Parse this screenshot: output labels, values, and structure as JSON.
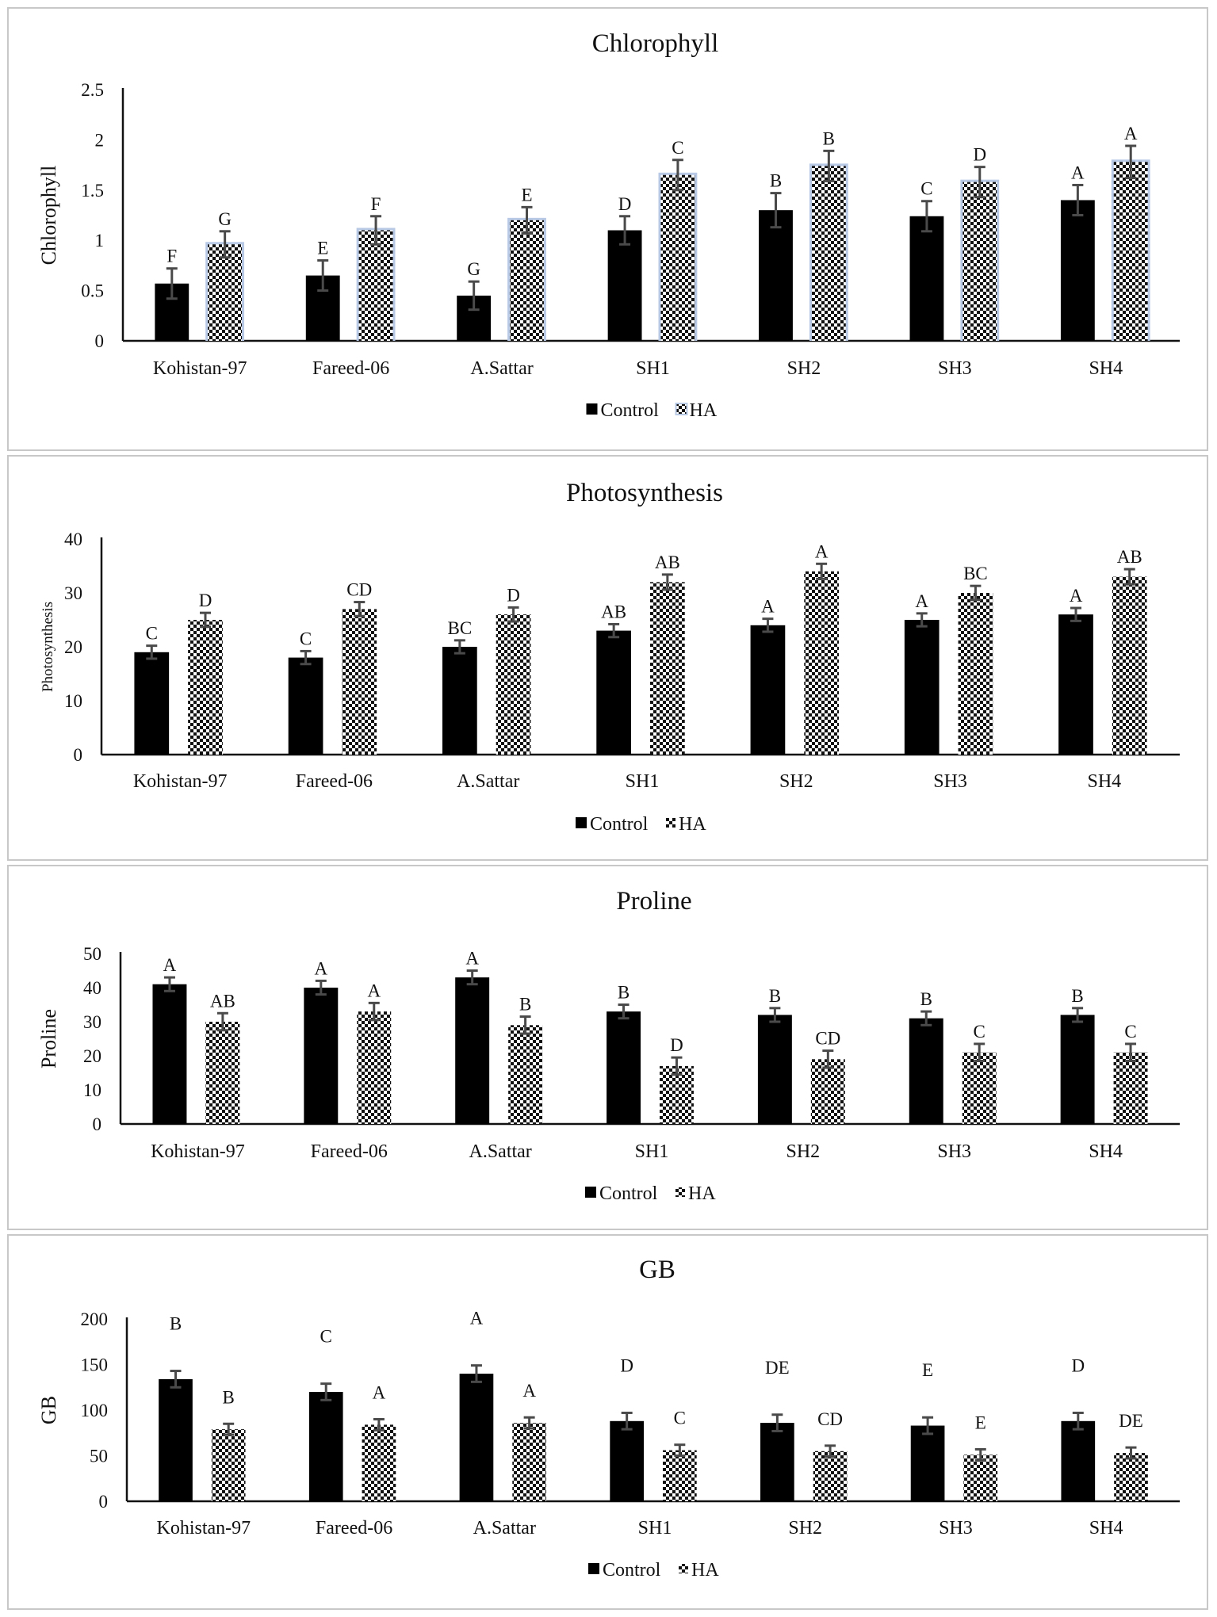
{
  "chart_data": [
    {
      "type": "bar",
      "title": "Chlorophyll",
      "xlabel": "",
      "ylabel": "Chlorophyll",
      "ylim": [
        0,
        2.5
      ],
      "yticks": [
        0,
        0.5,
        1,
        1.5,
        2,
        2.5
      ],
      "ytick_labels": [
        "0",
        "0.5",
        "1",
        "1.5",
        "2",
        "2.5"
      ],
      "categories": [
        "Kohistan-97",
        "Fareed-06",
        "A.Sattar",
        "SH1",
        "SH2",
        "SH3",
        "SH4"
      ],
      "series": [
        {
          "name": "Control",
          "values": [
            0.57,
            0.65,
            0.45,
            1.1,
            1.3,
            1.24,
            1.4
          ],
          "errors": [
            0.15,
            0.15,
            0.14,
            0.14,
            0.17,
            0.15,
            0.15
          ],
          "letters": [
            "F",
            "E",
            "G",
            "D",
            "B",
            "C",
            "A"
          ]
        },
        {
          "name": "HA",
          "values": [
            0.96,
            1.1,
            1.2,
            1.65,
            1.74,
            1.58,
            1.78
          ],
          "errors": [
            0.13,
            0.14,
            0.13,
            0.15,
            0.15,
            0.15,
            0.16
          ],
          "letters": [
            "G",
            "F",
            "E",
            "C",
            "B",
            "D",
            "A"
          ]
        }
      ],
      "legend": [
        "Control",
        "HA"
      ],
      "legend_position": "bottom",
      "grid": false
    },
    {
      "type": "bar",
      "title": "Photosynthesis",
      "xlabel": "",
      "ylabel": "Photosynthesis",
      "ylim": [
        0,
        40
      ],
      "yticks": [
        0,
        10,
        20,
        30,
        40
      ],
      "ytick_labels": [
        "0",
        "10",
        "20",
        "30",
        "40"
      ],
      "categories": [
        "Kohistan-97",
        "Fareed-06",
        "A.Sattar",
        "SH1",
        "SH2",
        "SH3",
        "SH4"
      ],
      "series": [
        {
          "name": "Control",
          "values": [
            19,
            18,
            20,
            23,
            24,
            25,
            26
          ],
          "errors": [
            1.2,
            1.2,
            1.2,
            1.2,
            1.2,
            1.2,
            1.2
          ],
          "letters": [
            "C",
            "C",
            "BC",
            "AB",
            "A",
            "A",
            "A"
          ]
        },
        {
          "name": "HA",
          "values": [
            25,
            27,
            26,
            32,
            34,
            30,
            33
          ],
          "errors": [
            1.3,
            1.3,
            1.3,
            1.4,
            1.4,
            1.3,
            1.4
          ],
          "letters": [
            "D",
            "CD",
            "D",
            "AB",
            "A",
            "BC",
            "AB"
          ]
        }
      ],
      "legend": [
        "Control",
        "HA"
      ],
      "legend_position": "bottom",
      "grid": false
    },
    {
      "type": "bar",
      "title": "Proline",
      "xlabel": "",
      "ylabel": "Proline",
      "ylim": [
        0,
        50
      ],
      "yticks": [
        0,
        10,
        20,
        30,
        40,
        50
      ],
      "ytick_labels": [
        "0",
        "10",
        "20",
        "30",
        "40",
        "50"
      ],
      "categories": [
        "Kohistan-97",
        "Fareed-06",
        "A.Sattar",
        "SH1",
        "SH2",
        "SH3",
        "SH4"
      ],
      "series": [
        {
          "name": "Control",
          "values": [
            41,
            40,
            43,
            33,
            32,
            31,
            32
          ],
          "errors": [
            2,
            2,
            2,
            2,
            2,
            2,
            2
          ],
          "letters": [
            "A",
            "A",
            "A",
            "B",
            "B",
            "B",
            "B"
          ]
        },
        {
          "name": "HA",
          "values": [
            30,
            33,
            29,
            17,
            19,
            21,
            21
          ],
          "errors": [
            2.5,
            2.5,
            2.5,
            2.5,
            2.5,
            2.5,
            2.5
          ],
          "letters": [
            "AB",
            "A",
            "B",
            "D",
            "CD",
            "C",
            "C"
          ]
        }
      ],
      "legend": [
        "Control",
        "HA"
      ],
      "legend_position": "bottom",
      "grid": false
    },
    {
      "type": "bar",
      "title": "GB",
      "xlabel": "",
      "ylabel": "GB",
      "ylim": [
        0,
        200
      ],
      "yticks": [
        0,
        50,
        100,
        150,
        200
      ],
      "ytick_labels": [
        "0",
        "50",
        "100",
        "150",
        "200"
      ],
      "categories": [
        "Kohistan-97",
        "Fareed-06",
        "A.Sattar",
        "SH1",
        "SH2",
        "SH3",
        "SH4"
      ],
      "series": [
        {
          "name": "Control",
          "values": [
            134,
            120,
            140,
            88,
            86,
            83,
            88
          ],
          "errors": [
            9,
            9,
            9,
            9,
            9,
            9,
            9
          ],
          "letters": [
            "B",
            "C",
            "A",
            "D",
            "DE",
            "E",
            "D"
          ]
        },
        {
          "name": "HA",
          "values": [
            79,
            84,
            86,
            56,
            55,
            51,
            53
          ],
          "errors": [
            6,
            6,
            6,
            6,
            6,
            6,
            6
          ],
          "letters": [
            "B",
            "A",
            "A",
            "C",
            "CD",
            "E",
            "DE"
          ]
        }
      ],
      "legend": [
        "Control",
        "HA"
      ],
      "legend_position": "bottom",
      "grid": false
    }
  ],
  "colors": {
    "control": "#000000",
    "ha_dark": "#111111",
    "ha_light": "#ffffff",
    "ha_highlight": "#b8c9e6",
    "error_bar": "#4a4a4a",
    "panel_border": "#c8c8c8",
    "axis": "#111111"
  }
}
